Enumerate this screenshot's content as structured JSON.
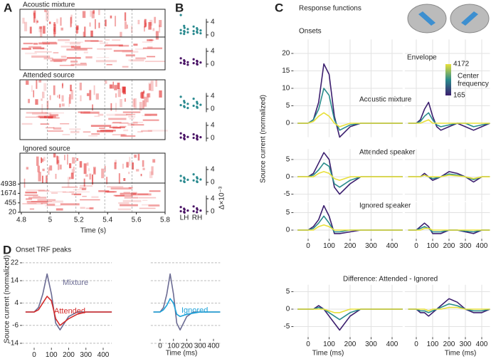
{
  "figure": {
    "panel_labels": [
      "A",
      "B",
      "C",
      "D"
    ],
    "c_title": "Response functions",
    "c_ylabel": "Source current (normalized)",
    "c_row_labels": [
      "Acoustic mixture",
      "Attended speaker",
      "Ignored speaker",
      "Difference: Attended - Ignored"
    ],
    "d_title": "Onset TRF peaks",
    "d_ylabel": "Source current (normalized)"
  },
  "chart_data": [
    {
      "type": "spectrogram",
      "title": "Acoustic mixture",
      "xlim": [
        4.8,
        5.8
      ],
      "ylim": [
        20,
        5500
      ],
      "yscale": "erb",
      "dashed_lines": [
        4.98,
        5.18,
        5.38,
        5.57
      ]
    },
    {
      "type": "spectrogram",
      "title": "Attended source",
      "xlim": [
        4.8,
        5.8
      ],
      "ylim": [
        20,
        5500
      ],
      "yscale": "erb",
      "dashed_lines": [
        4.98,
        5.18,
        5.38,
        5.57
      ]
    },
    {
      "type": "spectrogram",
      "title": "Ignored source",
      "xlim": [
        4.8,
        5.8
      ],
      "ylim": [
        20,
        5500
      ],
      "yscale": "erb",
      "dashed_lines": [
        4.98,
        5.18,
        5.38,
        5.57
      ],
      "xticks": [
        4.8,
        5,
        5.2,
        5.4,
        5.6,
        5.8
      ],
      "yticks": [
        20,
        455,
        1674,
        4938
      ],
      "xlabel": "Time (s)"
    },
    {
      "type": "strip",
      "ylim": [
        -1,
        5
      ],
      "yticks": [
        0,
        4
      ],
      "series": [
        {
          "color": "#2a8a8f",
          "values": [
            [
              6.2,
              2.8,
              2.2,
              1.8,
              1.5,
              1.2,
              1.0,
              0.8,
              0.5,
              0.3
            ],
            [
              2.6,
              2.1,
              1.7,
              1.4,
              1.2,
              1.0,
              0.7,
              0.5,
              0.3
            ]
          ]
        },
        {
          "color": "#4a1466",
          "values": [
            [
              1.8,
              1.2,
              0.9,
              0.6,
              0.4,
              0.2,
              0.1,
              -0.2
            ],
            [
              1.5,
              1.0,
              0.8,
              0.5,
              0.3,
              0.1,
              -0.1
            ]
          ]
        }
      ]
    },
    {
      "type": "strip",
      "ylim": [
        -1,
        5
      ],
      "yticks": [
        0,
        4
      ],
      "series": [
        {
          "color": "#2a8a8f",
          "values": [
            [
              3.8,
              2.5,
              2.0,
              1.6,
              1.2,
              0.9,
              0.6,
              0.3
            ],
            [
              3.2,
              2.2,
              1.7,
              1.3,
              1.0,
              0.7,
              0.4
            ]
          ]
        },
        {
          "color": "#4a1466",
          "values": [
            [
              1.5,
              1.0,
              0.7,
              0.4,
              0.2,
              0,
              -0.3
            ],
            [
              1.2,
              0.8,
              0.5,
              0.3,
              0.1,
              -0.1,
              -0.4
            ]
          ]
        }
      ]
    },
    {
      "type": "strip",
      "ylim": [
        -1,
        5
      ],
      "yticks": [
        0,
        4
      ],
      "categories": [
        "LH",
        "RH"
      ],
      "ylabel": "Δ×10⁻³",
      "series": [
        {
          "color": "#2a8a8f",
          "values": [
            [
              2.0,
              1.5,
              1.1,
              0.8,
              0.5,
              0.3,
              0.1
            ],
            [
              2.5,
              1.6,
              1.2,
              0.9,
              0.6,
              0.3,
              0.1
            ]
          ]
        },
        {
          "color": "#4a1466",
          "values": [
            [
              1.4,
              0.9,
              0.6,
              0.3,
              0.1,
              -0.1,
              -0.3
            ],
            [
              1.6,
              1.0,
              0.6,
              0.3,
              0.1,
              -0.2
            ]
          ]
        }
      ]
    },
    {
      "type": "line",
      "title": "Onsets",
      "xlim": [
        -70,
        450
      ],
      "ylim": [
        -4,
        24
      ],
      "yticks": [
        0,
        5,
        10,
        15,
        20
      ],
      "grid": true,
      "x": [
        -50,
        0,
        25,
        50,
        75,
        100,
        125,
        150,
        200,
        250,
        300,
        350,
        400,
        450
      ],
      "series": [
        {
          "color": "#3b1e6e",
          "values": [
            0,
            0,
            1,
            6,
            17,
            14,
            2,
            -4,
            -1,
            0,
            0,
            0,
            0,
            0
          ]
        },
        {
          "color": "#2a8c8c",
          "values": [
            0,
            0,
            1,
            4,
            10,
            8,
            1,
            -2,
            -0.5,
            0,
            0,
            0,
            0,
            0
          ]
        },
        {
          "color": "#e8e03a",
          "values": [
            0,
            0,
            0.5,
            2,
            3,
            2,
            0,
            -1,
            0,
            0,
            0,
            0,
            0,
            0
          ]
        }
      ]
    },
    {
      "type": "line",
      "title": "Envelope",
      "xlim": [
        -70,
        450
      ],
      "grid": true,
      "colorbar": {
        "ticks": [
          165,
          4172
        ],
        "label": [
          "Center",
          "frequency"
        ],
        "colors": [
          "#3b1e6e",
          "#2a8c8c",
          "#e8e03a"
        ]
      },
      "x": [
        -50,
        0,
        25,
        50,
        75,
        100,
        125,
        150,
        200,
        250,
        300,
        350,
        400,
        450
      ],
      "series": [
        {
          "color": "#3b1e6e",
          "values": [
            0,
            0,
            1,
            4,
            6,
            2,
            -1,
            -2,
            -1,
            0,
            -1,
            -2,
            -1,
            0
          ]
        },
        {
          "color": "#2a8c8c",
          "values": [
            0,
            0,
            0.5,
            2,
            3,
            1,
            -0.5,
            -1,
            -0.5,
            0,
            0,
            -1,
            -0.5,
            0
          ]
        },
        {
          "color": "#e8e03a",
          "values": [
            0,
            0,
            0,
            0.5,
            1,
            0,
            0,
            0,
            0,
            0,
            0,
            0,
            0,
            0
          ]
        }
      ]
    },
    {
      "type": "line",
      "xlim": [
        -70,
        450
      ],
      "ylim": [
        -7,
        8
      ],
      "yticks": [
        -5,
        0,
        5
      ],
      "grid": true,
      "x": [
        -50,
        0,
        25,
        50,
        75,
        100,
        125,
        150,
        200,
        250,
        300,
        350,
        400,
        450
      ],
      "series": [
        {
          "color": "#3b1e6e",
          "values": [
            0,
            0,
            1,
            4,
            7,
            5,
            -3,
            -5,
            -2,
            0,
            0,
            0,
            0,
            0
          ]
        },
        {
          "color": "#2a8c8c",
          "values": [
            0,
            0,
            0.5,
            2,
            4,
            3,
            -2,
            -3,
            -1,
            0,
            0,
            0,
            0,
            0
          ]
        },
        {
          "color": "#e8e03a",
          "values": [
            0,
            0,
            0,
            1,
            1.5,
            1,
            -0.5,
            -1,
            0,
            0,
            0,
            0,
            0,
            0
          ]
        }
      ]
    },
    {
      "type": "line",
      "xlim": [
        -70,
        450
      ],
      "grid": true,
      "x": [
        -50,
        0,
        25,
        50,
        75,
        100,
        125,
        150,
        200,
        250,
        300,
        350,
        400,
        450
      ],
      "series": [
        {
          "color": "#3b1e6e",
          "values": [
            0,
            0,
            0,
            1,
            0,
            -1,
            -0.5,
            0,
            1.5,
            1,
            0,
            -1.5,
            0,
            0
          ]
        },
        {
          "color": "#2a8c8c",
          "values": [
            0,
            0,
            0,
            0.5,
            0,
            -0.5,
            -0.3,
            0,
            0.8,
            0.5,
            0,
            -0.8,
            0,
            0
          ]
        },
        {
          "color": "#e8e03a",
          "values": [
            0,
            0,
            0,
            0.5,
            0,
            0,
            0,
            0,
            0.5,
            0.3,
            0,
            -0.5,
            0,
            0
          ]
        }
      ]
    },
    {
      "type": "line",
      "xlim": [
        -70,
        450
      ],
      "ylim": [
        -2.5,
        8
      ],
      "yticks": [
        0,
        5
      ],
      "xticks": [
        0,
        100,
        200,
        300,
        400
      ],
      "grid": true,
      "x": [
        -50,
        0,
        25,
        50,
        75,
        100,
        125,
        150,
        200,
        250,
        300,
        350,
        400,
        450
      ],
      "series": [
        {
          "color": "#3b1e6e",
          "values": [
            0,
            0,
            1,
            3,
            7,
            4,
            -1,
            -1,
            -0.5,
            0,
            0,
            0,
            0,
            0
          ]
        },
        {
          "color": "#2a8c8c",
          "values": [
            0,
            0,
            0.5,
            2,
            4,
            2,
            -0.5,
            -0.5,
            0,
            0,
            0,
            0,
            0,
            0
          ]
        },
        {
          "color": "#e8e03a",
          "values": [
            0,
            0,
            0,
            1,
            1.5,
            1,
            0,
            0,
            0,
            0,
            0,
            0,
            0,
            0
          ]
        }
      ]
    },
    {
      "type": "line",
      "xlim": [
        -70,
        450
      ],
      "xticks": [
        0,
        100,
        200,
        300,
        400
      ],
      "grid": true,
      "x": [
        -50,
        0,
        25,
        50,
        75,
        100,
        125,
        150,
        200,
        250,
        300,
        350,
        400,
        450
      ],
      "series": [
        {
          "color": "#3b1e6e",
          "values": [
            0,
            0,
            1,
            2,
            1,
            -1,
            -1,
            -1,
            0,
            0,
            -0.5,
            -1,
            0,
            0
          ]
        },
        {
          "color": "#2a8c8c",
          "values": [
            0,
            0,
            0.5,
            1,
            0.5,
            -0.5,
            -0.5,
            -0.5,
            0,
            0,
            -0.3,
            -0.5,
            0,
            0
          ]
        },
        {
          "color": "#e8e03a",
          "values": [
            0,
            0,
            0,
            0.5,
            0.5,
            0,
            0,
            0,
            0,
            0,
            0,
            0,
            0,
            0
          ]
        }
      ]
    },
    {
      "type": "line",
      "xlim": [
        -70,
        450
      ],
      "ylim": [
        -8,
        7
      ],
      "yticks": [
        -5,
        0,
        5
      ],
      "xticks": [
        0,
        100,
        200,
        300,
        400
      ],
      "xlabel": "Time (ms)",
      "grid": true,
      "x": [
        -50,
        0,
        25,
        50,
        75,
        100,
        125,
        150,
        200,
        250,
        300,
        350,
        400,
        450
      ],
      "series": [
        {
          "color": "#3b1e6e",
          "values": [
            0,
            0,
            0,
            1,
            0,
            -2,
            -4,
            -6,
            -2,
            0,
            0,
            0,
            0,
            0
          ]
        },
        {
          "color": "#2a8c8c",
          "values": [
            0,
            0,
            0,
            0.5,
            0,
            -1,
            -2,
            -3,
            -1,
            0,
            0,
            0,
            0,
            0
          ]
        },
        {
          "color": "#e8e03a",
          "values": [
            0,
            0,
            0,
            0,
            0,
            -0.5,
            -1,
            -1,
            0,
            0,
            0,
            0,
            0,
            0
          ]
        }
      ]
    },
    {
      "type": "line",
      "xlim": [
        -70,
        450
      ],
      "xticks": [
        0,
        100,
        200,
        300,
        400
      ],
      "xlabel": "Time (ms)",
      "grid": true,
      "x": [
        -50,
        0,
        25,
        50,
        75,
        100,
        125,
        150,
        200,
        250,
        300,
        350,
        400,
        450
      ],
      "series": [
        {
          "color": "#3b1e6e",
          "values": [
            0,
            0,
            -1,
            -1,
            -2,
            -1,
            0,
            1,
            3,
            2,
            0,
            -1,
            -1,
            0
          ]
        },
        {
          "color": "#2a8c8c",
          "values": [
            0,
            0,
            -0.5,
            -0.5,
            -1,
            -0.5,
            0,
            0.5,
            1.5,
            1,
            0,
            -0.5,
            -0.5,
            0
          ]
        },
        {
          "color": "#e8e03a",
          "values": [
            0,
            0,
            0,
            0,
            -0.5,
            0,
            0,
            0,
            0.5,
            0.5,
            0,
            0,
            0,
            0
          ]
        }
      ]
    },
    {
      "type": "line",
      "xlim": [
        -70,
        450
      ],
      "ylim": [
        -16,
        25
      ],
      "yticks": [
        22,
        14,
        4,
        -6,
        -14
      ],
      "xticks": [
        0,
        100,
        200,
        300,
        400
      ],
      "grid": true,
      "x": [
        -50,
        0,
        25,
        50,
        75,
        100,
        125,
        150,
        200,
        250,
        300,
        350,
        400,
        450
      ],
      "series": [
        {
          "name": "Mixture",
          "color": "#6b6b93",
          "values": [
            0,
            0,
            2,
            8,
            17,
            8,
            -5,
            -8,
            -2,
            0,
            0,
            0,
            0,
            0
          ]
        },
        {
          "name": "Attended",
          "color": "#d42a2a",
          "values": [
            0,
            0,
            1,
            4,
            7,
            5,
            -3,
            -6,
            -3,
            -1,
            0,
            0,
            0,
            0
          ]
        }
      ]
    },
    {
      "type": "line",
      "xlim": [
        -70,
        450
      ],
      "ylim": [
        -12,
        25
      ],
      "xticks": [
        0,
        100,
        200,
        300,
        400
      ],
      "xlabel": "Time (ms)",
      "grid": true,
      "x": [
        -50,
        0,
        25,
        50,
        75,
        100,
        125,
        150,
        200,
        250,
        300,
        350,
        400,
        450
      ],
      "series": [
        {
          "color": "#6b6b93",
          "values": [
            0,
            0,
            2,
            8,
            17,
            8,
            -5,
            -8,
            -2,
            0,
            0,
            0,
            0,
            0
          ]
        },
        {
          "name": "Ignored",
          "color": "#1ba1d9",
          "values": [
            0,
            0,
            1,
            3,
            6,
            4,
            -1,
            -2,
            -1,
            -0.5,
            0,
            0,
            0,
            0
          ]
        }
      ]
    }
  ]
}
